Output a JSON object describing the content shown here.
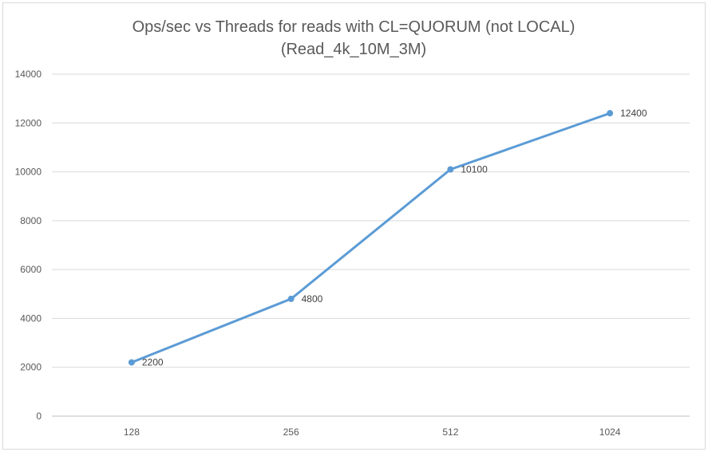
{
  "chart_data": {
    "type": "line",
    "title": "Ops/sec vs Threads for reads with CL=QUORUM (not LOCAL)",
    "subtitle": "(Read_4k_10M_3M)",
    "xlabel": "",
    "ylabel": "",
    "categories": [
      "128",
      "256",
      "512",
      "1024"
    ],
    "series": [
      {
        "values": [
          2200,
          4800,
          10100,
          12400
        ],
        "color": "#5b9bd5"
      }
    ],
    "ylim": [
      0,
      14000
    ],
    "yticks": [
      "0",
      "2000",
      "4000",
      "6000",
      "8000",
      "10000",
      "12000",
      "14000"
    ],
    "grid": true,
    "data_labels": true,
    "legend": "none"
  }
}
